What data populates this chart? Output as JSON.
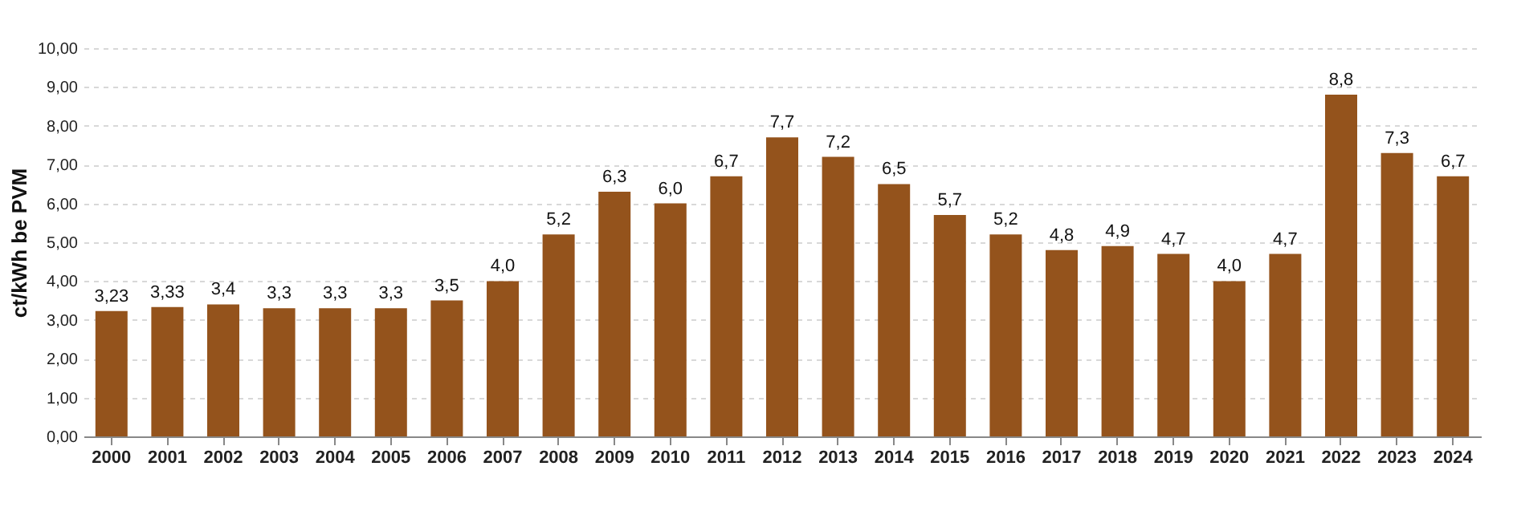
{
  "chart_data": {
    "type": "bar",
    "ylabel": "ct/kWh  be PVM",
    "categories": [
      "2000",
      "2001",
      "2002",
      "2003",
      "2004",
      "2005",
      "2006",
      "2007",
      "2008",
      "2009",
      "2010",
      "2011",
      "2012",
      "2013",
      "2014",
      "2015",
      "2016",
      "2017",
      "2018",
      "2019",
      "2020",
      "2021",
      "2022",
      "2023",
      "2024"
    ],
    "values": [
      3.23,
      3.33,
      3.4,
      3.3,
      3.3,
      3.3,
      3.5,
      4.0,
      5.2,
      6.3,
      6.0,
      6.7,
      7.7,
      7.2,
      6.5,
      5.7,
      5.2,
      4.8,
      4.9,
      4.7,
      4.0,
      4.7,
      8.8,
      7.3,
      6.7
    ],
    "value_labels": [
      "3,23",
      "3,33",
      "3,4",
      "3,3",
      "3,3",
      "3,3",
      "3,5",
      "4,0",
      "5,2",
      "6,3",
      "6,0",
      "6,7",
      "7,7",
      "7,2",
      "6,5",
      "5,7",
      "5,2",
      "4,8",
      "4,9",
      "4,7",
      "4,0",
      "4,7",
      "8,8",
      "7,3",
      "6,7"
    ],
    "color": "#94531c",
    "ylim": [
      0,
      10
    ],
    "yticks": [
      {
        "value": 0,
        "label": "0,00"
      },
      {
        "value": 1,
        "label": "1,00"
      },
      {
        "value": 2,
        "label": "2,00"
      },
      {
        "value": 3,
        "label": "3,00"
      },
      {
        "value": 4,
        "label": "4,00"
      },
      {
        "value": 5,
        "label": "5,00"
      },
      {
        "value": 6,
        "label": "6,00"
      },
      {
        "value": 7,
        "label": "7,00"
      },
      {
        "value": 8,
        "label": "8,00"
      },
      {
        "value": 9,
        "label": "9,00"
      },
      {
        "value": 10,
        "label": "10,00"
      }
    ],
    "grid": "y"
  }
}
